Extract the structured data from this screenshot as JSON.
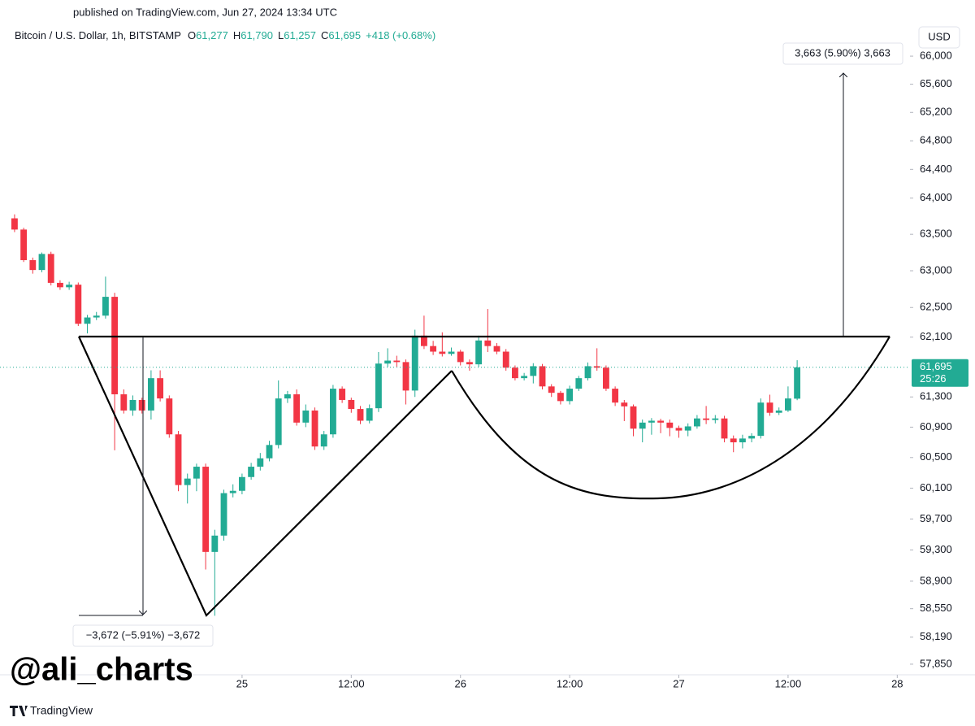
{
  "published": "published on TradingView.com, Jun 27, 2024 13:34 UTC",
  "header": {
    "symbol": "Bitcoin / U.S. Dollar, 1h, BITSTAMP",
    "ohlc": [
      {
        "key": "O",
        "value": "61,277"
      },
      {
        "key": "H",
        "value": "61,790"
      },
      {
        "key": "L",
        "value": "61,257"
      },
      {
        "key": "C",
        "value": "61,695"
      }
    ],
    "change": "+418 (+0.68%)"
  },
  "currency": "USD",
  "watermark": "@ali_charts",
  "brand": "TradingView",
  "chart_data": {
    "type": "candlestick",
    "log_scale": true,
    "up_color": "#22ab94",
    "down_color": "#f23645",
    "x": [
      0,
      1,
      2,
      3,
      4,
      5,
      6,
      7,
      8,
      9,
      10,
      11,
      12,
      13,
      14,
      15,
      16,
      17,
      18,
      19,
      20,
      21,
      22,
      23,
      24,
      25,
      26,
      27,
      28,
      29,
      30,
      31,
      32,
      33,
      34,
      35,
      36,
      37,
      38,
      39,
      40,
      41,
      42,
      43,
      44,
      45,
      46,
      47,
      48,
      49,
      50,
      51,
      52,
      53,
      54,
      55,
      56,
      57,
      58,
      59,
      60,
      61,
      62,
      63,
      64,
      65,
      66,
      67,
      68,
      69,
      70,
      71,
      72,
      73,
      74,
      75,
      76,
      77,
      78,
      79,
      80,
      81,
      82,
      83,
      84,
      85,
      86
    ],
    "open": [
      63720,
      63565,
      63145,
      63010,
      63230,
      62835,
      62775,
      62810,
      62280,
      62365,
      62390,
      62645,
      61335,
      61120,
      61260,
      61120,
      61550,
      61280,
      60805,
      60140,
      60225,
      60380,
      59275,
      59485,
      60035,
      60065,
      60245,
      60380,
      60490,
      60665,
      61280,
      61335,
      60960,
      61120,
      60645,
      60805,
      61410,
      61260,
      61140,
      60985,
      61150,
      61745,
      61785,
      61765,
      61385,
      62120,
      61980,
      61905,
      61875,
      61905,
      61765,
      61735,
      62055,
      61980,
      61905,
      61690,
      61550,
      61580,
      61710,
      61440,
      61355,
      61245,
      61410,
      61550,
      61710,
      61690,
      61410,
      61225,
      61175,
      60880,
      60960,
      60985,
      60960,
      60890,
      60855,
      60910,
      61015,
      60995,
      61015,
      60750,
      60700,
      60750,
      60785,
      61225,
      61090,
      61120,
      61277
    ],
    "high": [
      63775,
      63590,
      63180,
      63250,
      63260,
      62870,
      62850,
      62840,
      62400,
      62440,
      62920,
      62700,
      61400,
      61320,
      61290,
      61655,
      61655,
      61320,
      60850,
      60290,
      60420,
      60420,
      59560,
      60080,
      60150,
      60290,
      60430,
      60560,
      60720,
      61520,
      61380,
      61400,
      61200,
      61160,
      60850,
      61460,
      61440,
      61290,
      61180,
      61200,
      61900,
      61950,
      61850,
      61800,
      62200,
      62390,
      62050,
      62165,
      61960,
      61930,
      61800,
      62120,
      62480,
      62020,
      61940,
      61720,
      61620,
      61750,
      61740,
      61470,
      61380,
      61450,
      61580,
      61760,
      61950,
      61720,
      61440,
      61260,
      61200,
      61000,
      61020,
      61010,
      61000,
      60920,
      60950,
      61060,
      61180,
      61060,
      61050,
      60790,
      60800,
      60820,
      61280,
      61330,
      61160,
      61440,
      61790
    ],
    "low": [
      63530,
      63120,
      62960,
      62980,
      62800,
      62740,
      62740,
      62250,
      62150,
      62330,
      62350,
      60595,
      61080,
      61050,
      61080,
      61000,
      61240,
      60760,
      60060,
      59900,
      60060,
      59050,
      58460,
      59420,
      59980,
      60020,
      60210,
      60330,
      60450,
      60620,
      61220,
      60920,
      60900,
      60600,
      60600,
      60760,
      61220,
      61090,
      60940,
      60950,
      61100,
      61700,
      61700,
      61200,
      61300,
      61940,
      61860,
      61840,
      61850,
      61720,
      61650,
      61700,
      61900,
      61870,
      61650,
      61520,
      61520,
      61480,
      61400,
      61300,
      61200,
      61200,
      61380,
      61520,
      61650,
      61380,
      61180,
      60980,
      60780,
      60700,
      60800,
      60820,
      60780,
      60760,
      60780,
      60880,
      60940,
      60950,
      60700,
      60570,
      60620,
      60700,
      60750,
      61050,
      61060,
      61100,
      61257
    ],
    "close": [
      63565,
      63145,
      63010,
      63230,
      62835,
      62775,
      62810,
      62280,
      62365,
      62390,
      62645,
      61335,
      61120,
      61260,
      61120,
      61550,
      61280,
      60805,
      60140,
      60225,
      60380,
      59275,
      59485,
      60035,
      60065,
      60245,
      60380,
      60490,
      60665,
      61280,
      61335,
      60960,
      61120,
      60645,
      60805,
      61410,
      61260,
      61140,
      60985,
      61150,
      61745,
      61785,
      61765,
      61385,
      62120,
      61980,
      61905,
      61875,
      61905,
      61765,
      61735,
      62055,
      61980,
      61905,
      61690,
      61550,
      61580,
      61710,
      61440,
      61355,
      61245,
      61410,
      61550,
      61710,
      61690,
      61410,
      61225,
      61175,
      60880,
      60960,
      60985,
      60960,
      60890,
      60855,
      60910,
      61015,
      60995,
      61015,
      60750,
      60700,
      60750,
      60785,
      61225,
      61090,
      61120,
      61280,
      61695
    ],
    "last_price": {
      "value": 61695,
      "label": "61,695"
    },
    "countdown": "25:26",
    "xlim": [
      -1.6,
      98.4
    ],
    "xticks": [
      {
        "value": 25,
        "label": "25"
      },
      {
        "value": 37,
        "label": "12:00"
      },
      {
        "value": 49,
        "label": "26"
      },
      {
        "value": 61,
        "label": "12:00"
      },
      {
        "value": 73,
        "label": "27"
      },
      {
        "value": 85,
        "label": "12:00"
      },
      {
        "value": 97,
        "label": "28"
      }
    ],
    "ylim": [
      57717,
      66456
    ],
    "yticks": [
      {
        "value": 66000,
        "label": "66,000"
      },
      {
        "value": 65600,
        "label": "65,600"
      },
      {
        "value": 65200,
        "label": "65,200"
      },
      {
        "value": 64800,
        "label": "64,800"
      },
      {
        "value": 64400,
        "label": "64,400"
      },
      {
        "value": 64000,
        "label": "64,000"
      },
      {
        "value": 63500,
        "label": "63,500"
      },
      {
        "value": 63000,
        "label": "63,000"
      },
      {
        "value": 62500,
        "label": "62,500"
      },
      {
        "value": 62100,
        "label": "62,100"
      },
      {
        "value": 61300,
        "label": "61,300"
      },
      {
        "value": 60900,
        "label": "60,900"
      },
      {
        "value": 60500,
        "label": "60,500"
      },
      {
        "value": 60100,
        "label": "60,100"
      },
      {
        "value": 59700,
        "label": "59,700"
      },
      {
        "value": 59300,
        "label": "59,300"
      },
      {
        "value": 58900,
        "label": "58,900"
      },
      {
        "value": 58550,
        "label": "58,550"
      },
      {
        "value": 58190,
        "label": "58,190"
      },
      {
        "value": 57850,
        "label": "57,850"
      }
    ],
    "annotations": {
      "up_measure": "3,663 (5.90%) 3,663",
      "down_measure": "−3,672 (−5.91%) −3,672"
    }
  }
}
